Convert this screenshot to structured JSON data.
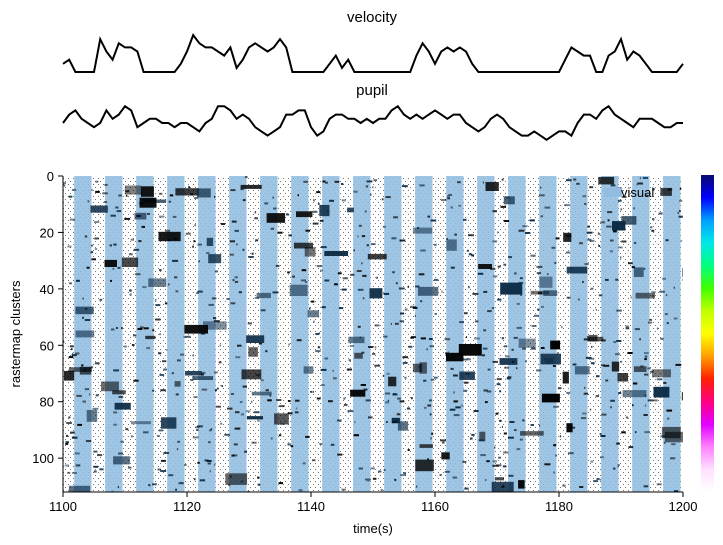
{
  "chart_data": [
    {
      "type": "line",
      "title": "velocity",
      "xlim": [
        1100,
        1200
      ],
      "axes_visible": false,
      "color": "#000000",
      "x": [
        1100,
        1101,
        1102,
        1103,
        1104,
        1105,
        1106,
        1107,
        1108,
        1109,
        1110,
        1111,
        1112,
        1113,
        1114,
        1115,
        1116,
        1117,
        1118,
        1119,
        1120,
        1121,
        1122,
        1123,
        1124,
        1125,
        1126,
        1127,
        1128,
        1129,
        1130,
        1131,
        1132,
        1133,
        1134,
        1135,
        1136,
        1137,
        1138,
        1139,
        1140,
        1141,
        1142,
        1143,
        1144,
        1145,
        1146,
        1147,
        1148,
        1149,
        1150,
        1151,
        1152,
        1153,
        1154,
        1155,
        1156,
        1157,
        1158,
        1159,
        1160,
        1161,
        1162,
        1163,
        1164,
        1165,
        1166,
        1167,
        1168,
        1169,
        1170,
        1171,
        1172,
        1173,
        1174,
        1175,
        1176,
        1177,
        1178,
        1179,
        1180,
        1181,
        1182,
        1183,
        1184,
        1185,
        1186,
        1187,
        1188,
        1189,
        1190,
        1191,
        1192,
        1193,
        1194,
        1195,
        1196,
        1197,
        1198,
        1199,
        1200
      ],
      "y": [
        0.2,
        0.3,
        0.0,
        0.0,
        0.0,
        0.0,
        0.8,
        0.5,
        0.3,
        0.7,
        0.6,
        0.6,
        0.5,
        0.0,
        0.0,
        0.0,
        0.0,
        0.0,
        0.0,
        0.2,
        0.5,
        0.9,
        0.7,
        0.6,
        0.6,
        0.5,
        0.4,
        0.6,
        0.1,
        0.3,
        0.6,
        0.7,
        0.6,
        0.5,
        0.6,
        0.8,
        0.6,
        0.0,
        0.0,
        0.0,
        0.0,
        0.0,
        0.0,
        0.2,
        0.4,
        0.1,
        0.3,
        0.0,
        0.0,
        0.0,
        0.0,
        0.0,
        0.0,
        0.0,
        0.0,
        0.0,
        0.0,
        0.4,
        0.7,
        0.5,
        0.2,
        0.5,
        0.6,
        0.5,
        0.6,
        0.5,
        0.2,
        0.0,
        0.0,
        0.0,
        0.0,
        0.0,
        0.0,
        0.0,
        0.0,
        0.0,
        0.0,
        0.0,
        0.0,
        0.0,
        0.0,
        0.3,
        0.6,
        0.5,
        0.4,
        0.4,
        0.0,
        0.0,
        0.4,
        0.5,
        0.8,
        0.3,
        0.5,
        0.4,
        0.2,
        0.0,
        0.0,
        0.0,
        0.0,
        0.0,
        0.2
      ]
    },
    {
      "type": "line",
      "title": "pupil",
      "xlim": [
        1100,
        1200
      ],
      "axes_visible": false,
      "color": "#000000",
      "x": [
        1100,
        1101,
        1102,
        1103,
        1104,
        1105,
        1106,
        1107,
        1108,
        1109,
        1110,
        1111,
        1112,
        1113,
        1114,
        1115,
        1116,
        1117,
        1118,
        1119,
        1120,
        1121,
        1122,
        1123,
        1124,
        1125,
        1126,
        1127,
        1128,
        1129,
        1130,
        1131,
        1132,
        1133,
        1134,
        1135,
        1136,
        1137,
        1138,
        1139,
        1140,
        1141,
        1142,
        1143,
        1144,
        1145,
        1146,
        1147,
        1148,
        1149,
        1150,
        1151,
        1152,
        1153,
        1154,
        1155,
        1156,
        1157,
        1158,
        1159,
        1160,
        1161,
        1162,
        1163,
        1164,
        1165,
        1166,
        1167,
        1168,
        1169,
        1170,
        1171,
        1172,
        1173,
        1174,
        1175,
        1176,
        1177,
        1178,
        1179,
        1180,
        1181,
        1182,
        1183,
        1184,
        1185,
        1186,
        1187,
        1188,
        1189,
        1190,
        1191,
        1192,
        1193,
        1194,
        1195,
        1196,
        1197,
        1198,
        1199,
        1200
      ],
      "y": [
        0.5,
        0.7,
        0.8,
        0.6,
        0.5,
        0.4,
        0.5,
        0.8,
        0.6,
        0.7,
        0.9,
        0.8,
        0.4,
        0.5,
        0.6,
        0.6,
        0.5,
        0.5,
        0.4,
        0.5,
        0.5,
        0.4,
        0.3,
        0.5,
        0.6,
        0.9,
        0.9,
        0.8,
        0.6,
        0.7,
        0.6,
        0.4,
        0.3,
        0.2,
        0.3,
        0.4,
        0.7,
        0.7,
        0.8,
        0.8,
        0.4,
        0.2,
        0.3,
        0.6,
        0.7,
        0.7,
        0.6,
        0.6,
        0.5,
        0.6,
        0.5,
        0.6,
        0.6,
        0.8,
        0.9,
        0.7,
        0.6,
        0.7,
        0.6,
        0.7,
        0.8,
        0.7,
        0.6,
        0.7,
        0.7,
        0.5,
        0.4,
        0.3,
        0.4,
        0.6,
        0.7,
        0.6,
        0.4,
        0.3,
        0.2,
        0.2,
        0.3,
        0.2,
        0.1,
        0.2,
        0.3,
        0.3,
        0.2,
        0.5,
        0.7,
        0.7,
        0.6,
        0.8,
        0.9,
        0.7,
        0.6,
        0.5,
        0.4,
        0.6,
        0.6,
        0.6,
        0.5,
        0.4,
        0.4,
        0.5,
        0.5
      ]
    },
    {
      "type": "heatmap",
      "xlabel": "time(s)",
      "ylabel": "rastermap clusters",
      "xlim": [
        1100,
        1200
      ],
      "ylim": [
        112,
        0
      ],
      "x_ticks": [
        "1100",
        "1120",
        "1140",
        "1160",
        "1180",
        "1200"
      ],
      "x_tick_values": [
        1100,
        1120,
        1140,
        1160,
        1180,
        1200
      ],
      "y_ticks": [
        "0",
        "20",
        "40",
        "60",
        "80",
        "100"
      ],
      "y_tick_values": [
        0,
        20,
        40,
        60,
        80,
        100
      ],
      "colormap": "binary",
      "overlay": {
        "name": "visual",
        "color": "#92bde0",
        "intervals": [
          [
            1101.8,
            1104.6
          ],
          [
            1106.8,
            1109.6
          ],
          [
            1111.8,
            1114.6
          ],
          [
            1116.8,
            1119.6
          ],
          [
            1121.8,
            1124.6
          ],
          [
            1126.8,
            1129.6
          ],
          [
            1131.8,
            1134.6
          ],
          [
            1136.8,
            1139.6
          ],
          [
            1141.8,
            1144.6
          ],
          [
            1146.8,
            1149.6
          ],
          [
            1151.8,
            1154.6
          ],
          [
            1156.8,
            1159.6
          ],
          [
            1161.8,
            1164.6
          ],
          [
            1166.8,
            1169.6
          ],
          [
            1171.8,
            1174.6
          ],
          [
            1176.8,
            1179.6
          ],
          [
            1181.8,
            1184.6
          ],
          [
            1186.8,
            1189.6
          ],
          [
            1191.8,
            1194.6
          ],
          [
            1196.8,
            1199.6
          ]
        ]
      },
      "legend": {
        "entries": [
          "visual"
        ],
        "placement": "top-right"
      },
      "colorbar": {
        "colors": [
          "#0a0a6e",
          "#0000ff",
          "#00a0ff",
          "#00e8e8",
          "#00ff80",
          "#40ff00",
          "#c0ff00",
          "#ffff00",
          "#ffa000",
          "#ff2000",
          "#ff0080",
          "#e000ff",
          "#ff80ff",
          "#ffe0ff",
          "#ffffff"
        ],
        "tick_labels_visible": false
      },
      "grid": false
    }
  ]
}
